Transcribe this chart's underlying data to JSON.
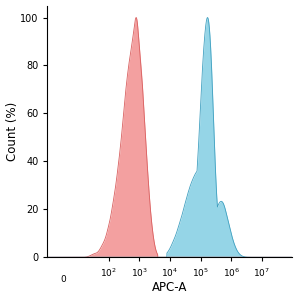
{
  "title": "",
  "xlabel": "APC-A",
  "ylabel": "Count (%)",
  "ylim": [
    0,
    105
  ],
  "yticks": [
    0,
    20,
    40,
    60,
    80,
    100
  ],
  "red_color_fill": "#F08080",
  "red_color_edge": "#D96060",
  "blue_color_fill": "#72C8E0",
  "blue_color_edge": "#40A0C0",
  "background_color": "#ffffff",
  "red_fill_alpha": 0.75,
  "blue_fill_alpha": 0.75
}
